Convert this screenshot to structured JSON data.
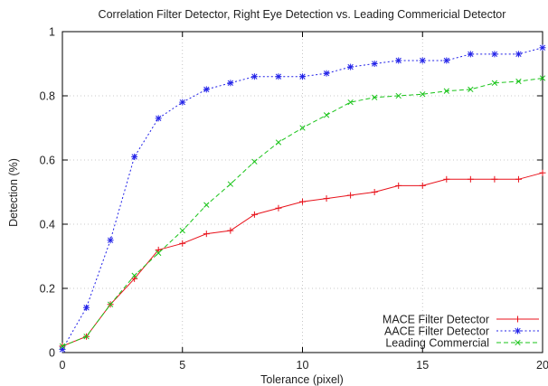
{
  "chart_data": {
    "type": "line",
    "title": "Correlation Filter Detector, Right Eye Detection vs. Leading Commericial Detector",
    "xlabel": "Tolerance (pixel)",
    "ylabel": "Detection (%)",
    "xlim": [
      0,
      20
    ],
    "ylim": [
      0,
      1
    ],
    "grid": true,
    "legend_position": "bottom-right",
    "x_ticks": [
      0,
      5,
      10,
      15,
      20
    ],
    "x_tick_labels": [
      "0",
      "5",
      "10",
      "15",
      "20"
    ],
    "y_ticks": [
      0,
      0.2,
      0.4,
      0.6,
      0.8,
      1
    ],
    "y_tick_labels": [
      "0",
      "0.2",
      "0.4",
      "0.6",
      "0.8",
      "1"
    ],
    "x": [
      0,
      1,
      2,
      3,
      4,
      5,
      6,
      7,
      8,
      9,
      10,
      11,
      12,
      13,
      14,
      15,
      16,
      17,
      18,
      19,
      20
    ],
    "series": [
      {
        "name": "MACE Filter Detector",
        "color": "#e8121b",
        "line_style": "solid",
        "marker": "plus",
        "values": [
          0.02,
          0.05,
          0.15,
          0.23,
          0.32,
          0.34,
          0.37,
          0.38,
          0.43,
          0.45,
          0.47,
          0.48,
          0.49,
          0.5,
          0.52,
          0.52,
          0.54,
          0.54,
          0.54,
          0.54,
          0.56
        ]
      },
      {
        "name": "AACE Filter Detector",
        "color": "#2121e8",
        "line_style": "dotted",
        "marker": "star",
        "values": [
          0.01,
          0.14,
          0.35,
          0.61,
          0.73,
          0.78,
          0.82,
          0.84,
          0.86,
          0.86,
          0.86,
          0.87,
          0.89,
          0.9,
          0.91,
          0.91,
          0.91,
          0.93,
          0.93,
          0.93,
          0.95
        ]
      },
      {
        "name": "Leading Commercial",
        "color": "#19c419",
        "line_style": "dashed",
        "marker": "cross",
        "values": [
          0.02,
          0.05,
          0.15,
          0.24,
          0.31,
          0.38,
          0.46,
          0.525,
          0.595,
          0.655,
          0.7,
          0.74,
          0.78,
          0.795,
          0.8,
          0.805,
          0.815,
          0.82,
          0.84,
          0.845,
          0.855
        ]
      }
    ]
  }
}
